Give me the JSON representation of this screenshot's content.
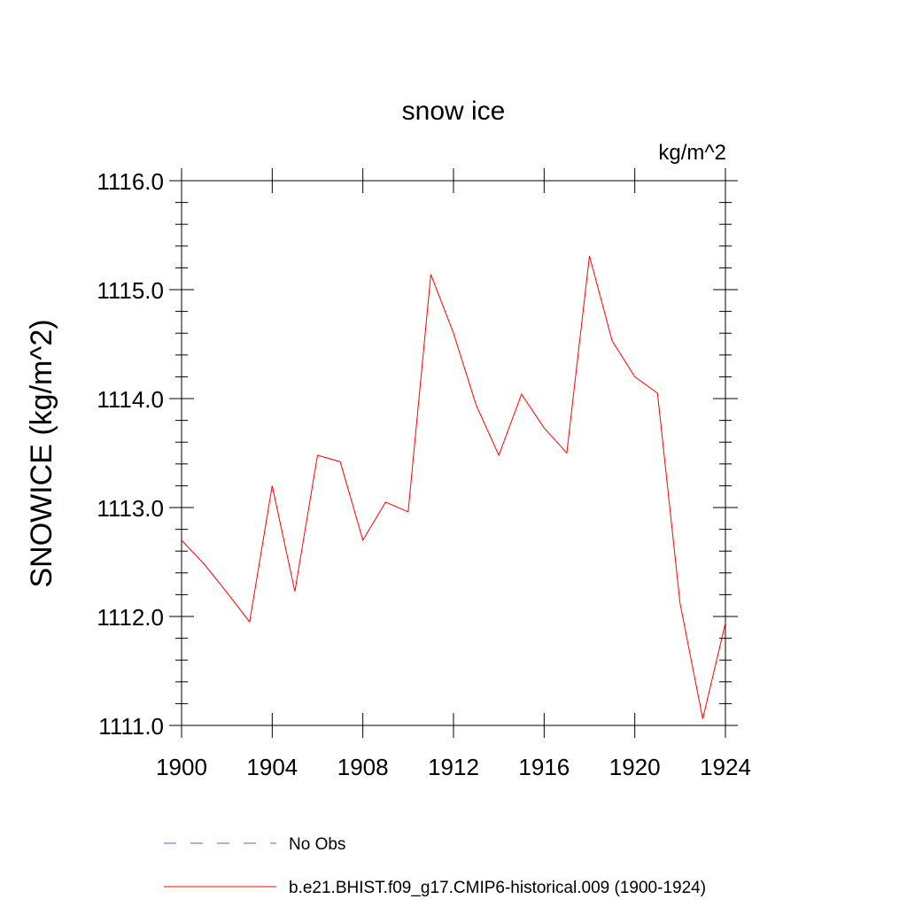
{
  "chart_data": {
    "type": "line",
    "title": "snow ice",
    "units_label": "kg/m^2",
    "ylabel": "SNOWICE  (kg/m^2)",
    "xlabel": "",
    "xlim": [
      1900,
      1924
    ],
    "ylim": [
      1111.0,
      1116.0
    ],
    "x_ticks": [
      1900,
      1904,
      1908,
      1912,
      1916,
      1920,
      1924
    ],
    "x_tick_labels": [
      "1900",
      "1904",
      "1908",
      "1912",
      "1916",
      "1920",
      "1924"
    ],
    "y_ticks": [
      1111.0,
      1112.0,
      1113.0,
      1114.0,
      1115.0,
      1116.0
    ],
    "y_tick_labels": [
      "1111.0",
      "1112.0",
      "1113.0",
      "1114.0",
      "1115.0",
      "1116.0"
    ],
    "grid": false,
    "legend_position": "bottom",
    "series": [
      {
        "name": "b.e21.BHIST.f09_g17.CMIP6-historical.009 (1900-1924)",
        "color": "#ff0000",
        "style": "solid",
        "x": [
          1900,
          1901,
          1902,
          1903,
          1904,
          1905,
          1906,
          1907,
          1908,
          1909,
          1910,
          1911,
          1912,
          1913,
          1914,
          1915,
          1916,
          1917,
          1918,
          1919,
          1920,
          1921,
          1922,
          1923,
          1924
        ],
        "y": [
          1112.7,
          1112.48,
          1112.22,
          1111.95,
          1113.2,
          1112.23,
          1113.48,
          1113.42,
          1112.7,
          1113.05,
          1112.96,
          1115.14,
          1114.6,
          1113.94,
          1113.48,
          1114.04,
          1113.73,
          1113.5,
          1115.31,
          1114.53,
          1114.2,
          1114.05,
          1112.12,
          1111.06,
          1111.94
        ]
      }
    ],
    "legend": [
      {
        "label": "No Obs",
        "color": "#6a5acd",
        "style": "dashed"
      },
      {
        "label": "b.e21.BHIST.f09_g17.CMIP6-historical.009 (1900-1924)",
        "color": "#ff0000",
        "style": "solid"
      }
    ]
  }
}
